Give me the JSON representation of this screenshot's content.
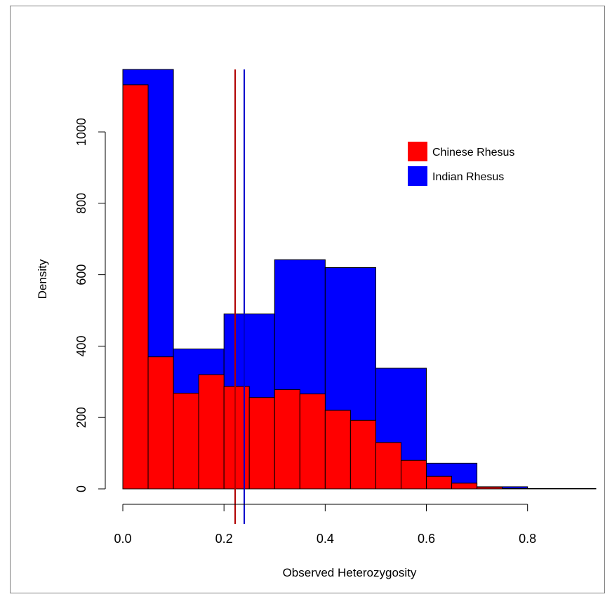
{
  "chart_data": {
    "type": "bar",
    "xlabel": "Observed Heterozygosity",
    "ylabel": "Density",
    "xlim": [
      0.0,
      0.935
    ],
    "ylim": [
      0,
      1175
    ],
    "x_ticks": [
      "0.0",
      "0.2",
      "0.4",
      "0.6",
      "0.8"
    ],
    "y_ticks": [
      "0",
      "200",
      "400",
      "600",
      "800",
      "1000"
    ],
    "grid": false,
    "legend_position": "top-right",
    "series": [
      {
        "name": "Indian Rhesus",
        "color": "#0000ff",
        "bins": [
          {
            "x0": 0.0,
            "x1": 0.1,
            "value": 1175
          },
          {
            "x0": 0.1,
            "x1": 0.2,
            "value": 392
          },
          {
            "x0": 0.2,
            "x1": 0.3,
            "value": 490
          },
          {
            "x0": 0.3,
            "x1": 0.4,
            "value": 642
          },
          {
            "x0": 0.4,
            "x1": 0.5,
            "value": 620
          },
          {
            "x0": 0.5,
            "x1": 0.6,
            "value": 338
          },
          {
            "x0": 0.6,
            "x1": 0.7,
            "value": 72
          },
          {
            "x0": 0.7,
            "x1": 0.8,
            "value": 6
          },
          {
            "x0": 0.8,
            "x1": 0.9,
            "value": 1
          }
        ],
        "mean": 0.24
      },
      {
        "name": "Chinese Rhesus",
        "color": "#ff0000",
        "bins": [
          {
            "x0": 0.0,
            "x1": 0.05,
            "value": 1132
          },
          {
            "x0": 0.05,
            "x1": 0.1,
            "value": 370
          },
          {
            "x0": 0.1,
            "x1": 0.15,
            "value": 268
          },
          {
            "x0": 0.15,
            "x1": 0.2,
            "value": 320
          },
          {
            "x0": 0.2,
            "x1": 0.25,
            "value": 287
          },
          {
            "x0": 0.25,
            "x1": 0.3,
            "value": 256
          },
          {
            "x0": 0.3,
            "x1": 0.35,
            "value": 278
          },
          {
            "x0": 0.35,
            "x1": 0.4,
            "value": 266
          },
          {
            "x0": 0.4,
            "x1": 0.45,
            "value": 220
          },
          {
            "x0": 0.45,
            "x1": 0.5,
            "value": 192
          },
          {
            "x0": 0.5,
            "x1": 0.55,
            "value": 130
          },
          {
            "x0": 0.55,
            "x1": 0.6,
            "value": 80
          },
          {
            "x0": 0.6,
            "x1": 0.65,
            "value": 35
          },
          {
            "x0": 0.65,
            "x1": 0.7,
            "value": 16
          },
          {
            "x0": 0.7,
            "x1": 0.75,
            "value": 5
          },
          {
            "x0": 0.75,
            "x1": 0.8,
            "value": 1
          },
          {
            "x0": 0.8,
            "x1": 0.85,
            "value": 1
          },
          {
            "x0": 0.85,
            "x1": 0.9,
            "value": 1
          },
          {
            "x0": 0.9,
            "x1": 0.935,
            "value": 1
          }
        ],
        "mean": 0.222
      }
    ],
    "legend": [
      {
        "label": "Chinese Rhesus",
        "color": "#ff0000"
      },
      {
        "label": "Indian Rhesus",
        "color": "#0000ff"
      }
    ]
  }
}
